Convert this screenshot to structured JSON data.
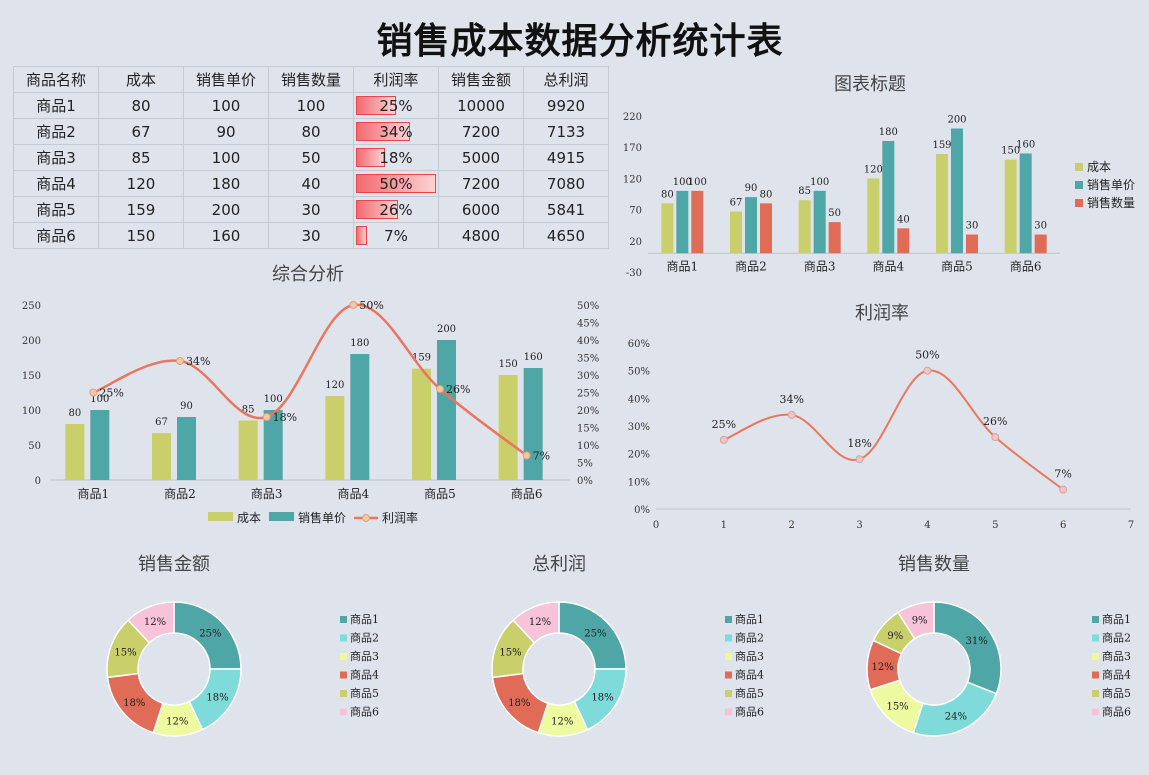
{
  "title": "销售成本数据分析统计表",
  "table": {
    "headers": [
      "商品名称",
      "成本",
      "销售单价",
      "销售数量",
      "利润率",
      "销售金额",
      "总利润"
    ],
    "rows": [
      {
        "name": "商品1",
        "cost": "80",
        "price": "100",
        "qty": "100",
        "rate": "25%",
        "rate_value": 0.25,
        "amount": "10000",
        "profit": "9920"
      },
      {
        "name": "商品2",
        "cost": "67",
        "price": "90",
        "qty": "80",
        "rate": "34%",
        "rate_value": 0.34,
        "amount": "7200",
        "profit": "7133"
      },
      {
        "name": "商品3",
        "cost": "85",
        "price": "100",
        "qty": "50",
        "rate": "18%",
        "rate_value": 0.18,
        "amount": "5000",
        "profit": "4915"
      },
      {
        "name": "商品4",
        "cost": "120",
        "price": "180",
        "qty": "40",
        "rate": "50%",
        "rate_value": 0.5,
        "amount": "7200",
        "profit": "7080"
      },
      {
        "name": "商品5",
        "cost": "159",
        "price": "200",
        "qty": "30",
        "rate": "26%",
        "rate_value": 0.26,
        "amount": "6000",
        "profit": "5841"
      },
      {
        "name": "商品6",
        "cost": "150",
        "price": "160",
        "qty": "30",
        "rate": "7%",
        "rate_value": 0.07,
        "amount": "4800",
        "profit": "4650"
      }
    ]
  },
  "chart_data": [
    {
      "id": "bar-top",
      "type": "bar",
      "title": "图表标题",
      "categories": [
        "商品1",
        "商品2",
        "商品3",
        "商品4",
        "商品5",
        "商品6"
      ],
      "series": [
        {
          "name": "成本",
          "color": "#c9cf6a",
          "values": [
            80,
            67,
            85,
            120,
            159,
            150
          ]
        },
        {
          "name": "销售单价",
          "color": "#4ea6a6",
          "values": [
            100,
            90,
            100,
            180,
            200,
            160
          ]
        },
        {
          "name": "销售数量",
          "color": "#e06b56",
          "values": [
            100,
            80,
            50,
            40,
            30,
            30
          ]
        }
      ],
      "yticks": [
        "220",
        "170",
        "120",
        "70",
        "20",
        "-30"
      ],
      "ylim": [
        -30,
        220
      ],
      "legend": "right"
    },
    {
      "id": "combo",
      "type": "bar",
      "title": "综合分析",
      "categories": [
        "商品1",
        "商品2",
        "商品3",
        "商品4",
        "商品5",
        "商品6"
      ],
      "series": [
        {
          "name": "成本",
          "color": "#c9cf6a",
          "values": [
            80,
            67,
            85,
            120,
            159,
            150
          ]
        },
        {
          "name": "销售单价",
          "color": "#4ea6a6",
          "values": [
            100,
            90,
            100,
            180,
            200,
            160
          ]
        },
        {
          "name": "利润率",
          "color": "#e9765e",
          "type": "line",
          "values": [
            0.25,
            0.34,
            0.18,
            0.5,
            0.26,
            0.07
          ],
          "labels": [
            "25%",
            "34%",
            "18%",
            "50%",
            "26%",
            "7%"
          ]
        }
      ],
      "yticks": [
        "250",
        "200",
        "150",
        "100",
        "50",
        "0"
      ],
      "y2ticks": [
        "50%",
        "45%",
        "40%",
        "35%",
        "30%",
        "25%",
        "20%",
        "15%",
        "10%",
        "5%",
        "0%"
      ],
      "ylim": [
        0,
        250
      ],
      "y2lim": [
        0,
        0.5
      ],
      "legend": "bottom"
    },
    {
      "id": "line-rate",
      "type": "scatter",
      "title": "利润率",
      "x": [
        1,
        2,
        3,
        4,
        5,
        6
      ],
      "values": [
        0.25,
        0.34,
        0.18,
        0.5,
        0.26,
        0.07
      ],
      "labels": [
        "25%",
        "34%",
        "18%",
        "50%",
        "26%",
        "7%"
      ],
      "xticks": [
        "0",
        "1",
        "2",
        "3",
        "4",
        "5",
        "6",
        "7"
      ],
      "yticks": [
        "60%",
        "50%",
        "40%",
        "30%",
        "20%",
        "10%",
        "0%"
      ],
      "xlim": [
        0,
        7
      ],
      "ylim": [
        0,
        0.6
      ]
    },
    {
      "id": "pie-amount",
      "type": "pie",
      "title": "销售金额",
      "labels": [
        "商品1",
        "商品2",
        "商品3",
        "商品4",
        "商品5",
        "商品6"
      ],
      "values": [
        25,
        18,
        12,
        18,
        15,
        12
      ],
      "value_labels": [
        "25%",
        "18%",
        "12%",
        "18%",
        "15%",
        "12%"
      ],
      "legend": "right"
    },
    {
      "id": "pie-profit",
      "type": "pie",
      "title": "总利润",
      "labels": [
        "商品1",
        "商品2",
        "商品3",
        "商品4",
        "商品5",
        "商品6"
      ],
      "values": [
        25,
        18,
        12,
        18,
        15,
        12
      ],
      "value_labels": [
        "25%",
        "18%",
        "12%",
        "18%",
        "15%",
        "12%"
      ],
      "legend": "right"
    },
    {
      "id": "pie-qty",
      "type": "pie",
      "title": "销售数量",
      "labels": [
        "商品1",
        "商品2",
        "商品3",
        "商品4",
        "商品5",
        "商品6"
      ],
      "values": [
        31,
        24,
        15,
        12,
        9,
        9
      ],
      "value_labels": [
        "31%",
        "24%",
        "15%",
        "12%",
        "9%",
        "9%"
      ],
      "legend": "right"
    }
  ],
  "pie_colors": [
    "#4ea6a6",
    "#7fdada",
    "#eefaa0",
    "#e06b56",
    "#c9cf6a",
    "#f7c3d8"
  ]
}
